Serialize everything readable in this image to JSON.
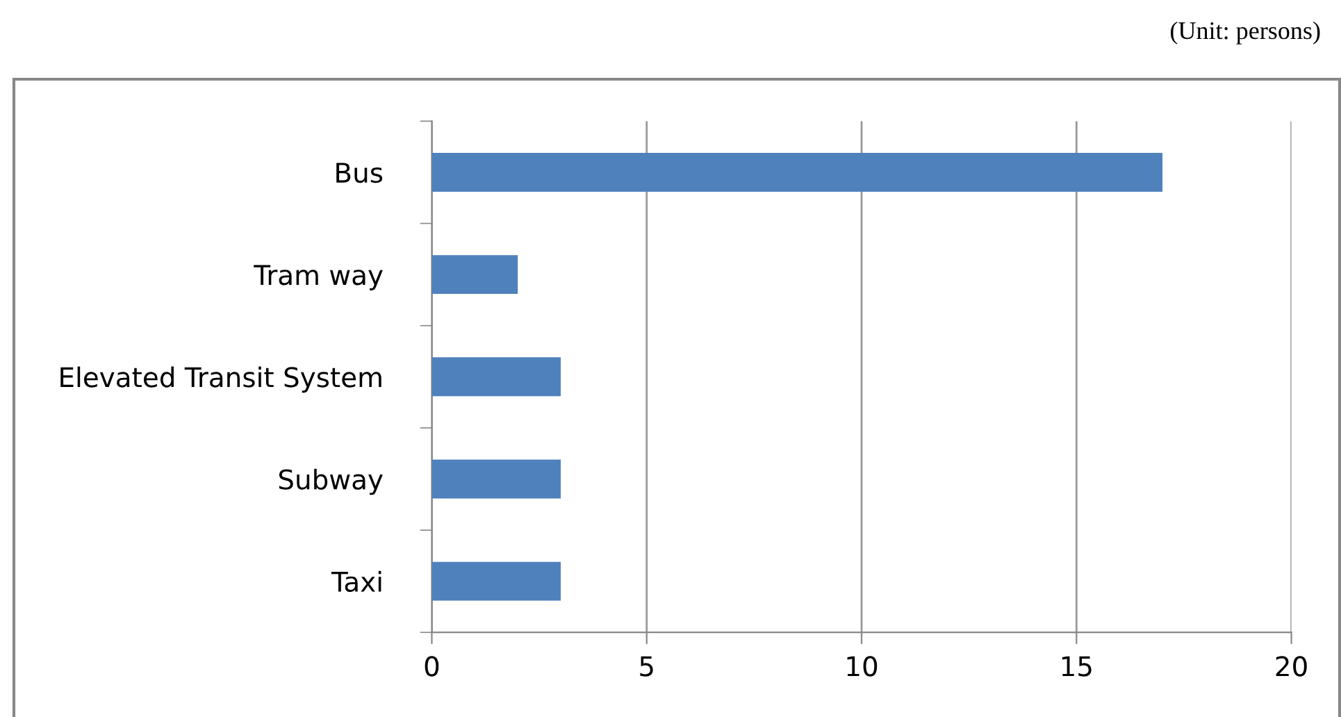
{
  "chart_data": {
    "type": "bar",
    "orientation": "horizontal",
    "categories": [
      "Bus",
      "Tram way",
      "Elevated Transit System",
      "Subway",
      "Taxi"
    ],
    "values": [
      17,
      2,
      3,
      3,
      3
    ],
    "color": "#4f81bd",
    "xlim": [
      0,
      20
    ],
    "xticks": [
      0,
      5,
      10,
      15,
      20
    ],
    "grid": "x",
    "legend": false,
    "annotations": [
      "(Unit: persons)"
    ]
  }
}
